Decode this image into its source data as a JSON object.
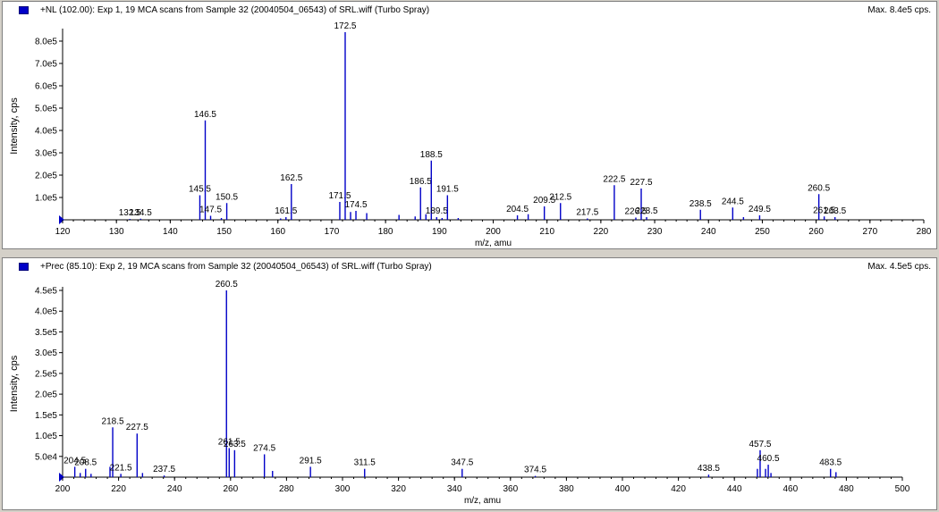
{
  "panels": [
    {
      "title": "+NL (102.00): Exp 1, 19 MCA scans from Sample 32 (20040504_06543) of SRL.wiff (Turbo Spray)",
      "max": "Max. 8.4e5 cps."
    },
    {
      "title": "+Prec (85.10): Exp 2, 19 MCA scans from Sample 32 (20040504_06543) of SRL.wiff (Turbo Spray)",
      "max": "Max. 4.5e5 cps."
    }
  ],
  "colors": {
    "peak": "#0000c8",
    "axis": "#000000",
    "legend": "#0000c8"
  },
  "chart_data": [
    {
      "type": "bar",
      "xlabel": "m/z, amu",
      "ylabel": "Intensity, cps",
      "xlim": [
        120,
        280
      ],
      "ylim": [
        0,
        840000
      ],
      "xticks": [
        "120",
        "130",
        "140",
        "150",
        "160",
        "170",
        "180",
        "190",
        "200",
        "210",
        "220",
        "230",
        "240",
        "250",
        "260",
        "270",
        "280"
      ],
      "yticks": [
        {
          "v": 100000,
          "label": "1.0e5"
        },
        {
          "v": 200000,
          "label": "2.0e5"
        },
        {
          "v": 300000,
          "label": "3.0e5"
        },
        {
          "v": 400000,
          "label": "4.0e5"
        },
        {
          "v": 500000,
          "label": "5.0e5"
        },
        {
          "v": 600000,
          "label": "6.0e5"
        },
        {
          "v": 700000,
          "label": "7.0e5"
        },
        {
          "v": 800000,
          "label": "8.0e5"
        }
      ],
      "peaks": [
        {
          "x": 132.5,
          "y": 4000,
          "label": "132.5"
        },
        {
          "x": 134.5,
          "y": 5000,
          "label": "134.5"
        },
        {
          "x": 145.5,
          "y": 110000,
          "label": "145.5"
        },
        {
          "x": 146.5,
          "y": 445000,
          "label": "146.5"
        },
        {
          "x": 147.5,
          "y": 18000,
          "label": "147.5"
        },
        {
          "x": 150.5,
          "y": 75000,
          "label": "150.5"
        },
        {
          "x": 149.5,
          "y": 8000
        },
        {
          "x": 161.5,
          "y": 12000,
          "label": "161.5"
        },
        {
          "x": 162.5,
          "y": 160000,
          "label": "162.5"
        },
        {
          "x": 160.5,
          "y": 6000
        },
        {
          "x": 171.5,
          "y": 80000,
          "label": "171.5"
        },
        {
          "x": 172.5,
          "y": 840000,
          "label": "172.5"
        },
        {
          "x": 173.5,
          "y": 35000
        },
        {
          "x": 174.5,
          "y": 40000,
          "label": "174.5"
        },
        {
          "x": 176.5,
          "y": 30000
        },
        {
          "x": 182.5,
          "y": 22000
        },
        {
          "x": 185.5,
          "y": 15000
        },
        {
          "x": 186.5,
          "y": 145000,
          "label": "186.5"
        },
        {
          "x": 187.5,
          "y": 25000
        },
        {
          "x": 188.5,
          "y": 265000,
          "label": "188.5"
        },
        {
          "x": 189.5,
          "y": 12000,
          "label": "189.5"
        },
        {
          "x": 190.5,
          "y": 8000
        },
        {
          "x": 191.5,
          "y": 110000,
          "label": "191.5"
        },
        {
          "x": 193.5,
          "y": 8000
        },
        {
          "x": 204.5,
          "y": 20000,
          "label": "204.5"
        },
        {
          "x": 206.5,
          "y": 25000
        },
        {
          "x": 209.5,
          "y": 60000,
          "label": "209.5"
        },
        {
          "x": 212.5,
          "y": 75000,
          "label": "212.5"
        },
        {
          "x": 217.5,
          "y": 6000,
          "label": "217.5"
        },
        {
          "x": 222.5,
          "y": 155000,
          "label": "222.5"
        },
        {
          "x": 226.5,
          "y": 10000,
          "label": "226.5"
        },
        {
          "x": 227.5,
          "y": 140000,
          "label": "227.5"
        },
        {
          "x": 228.5,
          "y": 12000,
          "label": "228.5"
        },
        {
          "x": 238.5,
          "y": 45000,
          "label": "238.5"
        },
        {
          "x": 244.5,
          "y": 55000,
          "label": "244.5"
        },
        {
          "x": 246.5,
          "y": 12000
        },
        {
          "x": 249.5,
          "y": 20000,
          "label": "249.5"
        },
        {
          "x": 260.5,
          "y": 115000,
          "label": "260.5"
        },
        {
          "x": 261.5,
          "y": 15000,
          "label": "261.5"
        },
        {
          "x": 263.5,
          "y": 12000,
          "label": "263.5"
        }
      ]
    },
    {
      "type": "bar",
      "xlabel": "m/z, amu",
      "ylabel": "Intensity, cps",
      "xlim": [
        200,
        510
      ],
      "ylim": [
        0,
        450000
      ],
      "xticks": [
        "200",
        "220",
        "240",
        "260",
        "280",
        "300",
        "320",
        "340",
        "360",
        "380",
        "400",
        "420",
        "440",
        "460",
        "480",
        "500"
      ],
      "yticks": [
        {
          "v": 50000,
          "label": "5.0e4"
        },
        {
          "v": 100000,
          "label": "1.0e5"
        },
        {
          "v": 150000,
          "label": "1.5e5"
        },
        {
          "v": 200000,
          "label": "2.0e5"
        },
        {
          "v": 250000,
          "label": "2.5e5"
        },
        {
          "v": 300000,
          "label": "3.0e5"
        },
        {
          "v": 350000,
          "label": "3.5e5"
        },
        {
          "v": 400000,
          "label": "4.0e5"
        },
        {
          "v": 450000,
          "label": "4.5e5"
        }
      ],
      "peaks": [
        {
          "x": 204.5,
          "y": 25000,
          "label": "204.5"
        },
        {
          "x": 206.5,
          "y": 10000
        },
        {
          "x": 208.5,
          "y": 20000,
          "label": "208.5"
        },
        {
          "x": 210.5,
          "y": 8000
        },
        {
          "x": 217.5,
          "y": 25000
        },
        {
          "x": 218.5,
          "y": 120000,
          "label": "218.5"
        },
        {
          "x": 221.5,
          "y": 8000,
          "label": "221.5"
        },
        {
          "x": 227.5,
          "y": 105000,
          "label": "227.5"
        },
        {
          "x": 229.5,
          "y": 10000
        },
        {
          "x": 237.5,
          "y": 4000,
          "label": "237.5"
        },
        {
          "x": 260.5,
          "y": 450000,
          "label": "260.5"
        },
        {
          "x": 261.5,
          "y": 70000,
          "label": "261.5"
        },
        {
          "x": 263.5,
          "y": 65000,
          "label": "263.5"
        },
        {
          "x": 274.5,
          "y": 55000,
          "label": "274.5"
        },
        {
          "x": 277.5,
          "y": 15000
        },
        {
          "x": 291.5,
          "y": 25000,
          "label": "291.5"
        },
        {
          "x": 311.5,
          "y": 20000,
          "label": "311.5"
        },
        {
          "x": 347.5,
          "y": 20000,
          "label": "347.5"
        },
        {
          "x": 374.5,
          "y": 3000,
          "label": "374.5"
        },
        {
          "x": 438.5,
          "y": 6000,
          "label": "438.5"
        },
        {
          "x": 456.5,
          "y": 20000
        },
        {
          "x": 457.5,
          "y": 65000,
          "label": "457.5"
        },
        {
          "x": 459.5,
          "y": 20000
        },
        {
          "x": 460.5,
          "y": 30000,
          "label": "460.5"
        },
        {
          "x": 461.5,
          "y": 10000
        },
        {
          "x": 483.5,
          "y": 20000,
          "label": "483.5"
        },
        {
          "x": 485.5,
          "y": 12000
        }
      ]
    }
  ]
}
